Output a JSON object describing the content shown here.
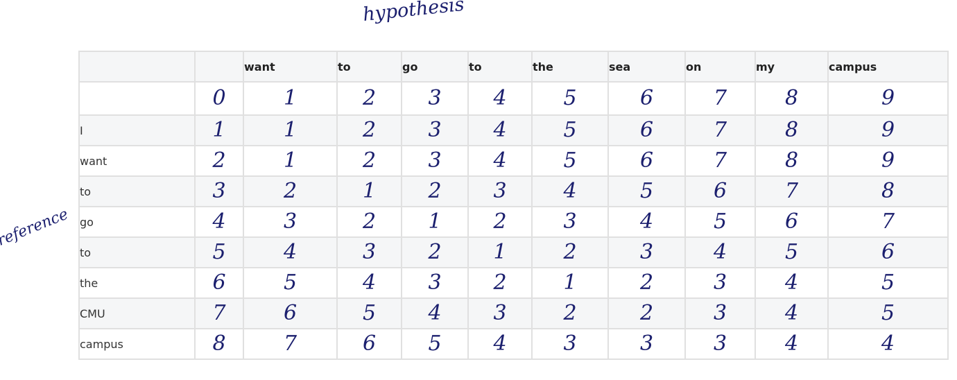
{
  "annotations": {
    "hypothesis": "hypothesis",
    "reference": "reference"
  },
  "header": [
    "",
    "",
    "want",
    "to",
    "go",
    "to",
    "the",
    "sea",
    "on",
    "my",
    "campus"
  ],
  "rows": [
    {
      "label": "",
      "values": [
        "0",
        "1",
        "2",
        "3",
        "4",
        "5",
        "6",
        "7",
        "8",
        "9"
      ]
    },
    {
      "label": "I",
      "values": [
        "1",
        "1",
        "2",
        "3",
        "4",
        "5",
        "6",
        "7",
        "8",
        "9"
      ]
    },
    {
      "label": "want",
      "values": [
        "2",
        "1",
        "2",
        "3",
        "4",
        "5",
        "6",
        "7",
        "8",
        "9"
      ]
    },
    {
      "label": "to",
      "values": [
        "3",
        "2",
        "1",
        "2",
        "3",
        "4",
        "5",
        "6",
        "7",
        "8"
      ]
    },
    {
      "label": "go",
      "values": [
        "4",
        "3",
        "2",
        "1",
        "2",
        "3",
        "4",
        "5",
        "6",
        "7"
      ]
    },
    {
      "label": "to",
      "values": [
        "5",
        "4",
        "3",
        "2",
        "1",
        "2",
        "3",
        "4",
        "5",
        "6"
      ]
    },
    {
      "label": "the",
      "values": [
        "6",
        "5",
        "4",
        "3",
        "2",
        "1",
        "2",
        "3",
        "4",
        "5"
      ]
    },
    {
      "label": "CMU",
      "values": [
        "7",
        "6",
        "5",
        "4",
        "3",
        "2",
        "2",
        "3",
        "4",
        "5"
      ]
    },
    {
      "label": "campus",
      "values": [
        "8",
        "7",
        "6",
        "5",
        "4",
        "3",
        "3",
        "3",
        "4",
        "4"
      ]
    }
  ],
  "colors": {
    "ink": "#1b1f6e",
    "grid": "#e0e0e0",
    "stripe": "#f5f6f7"
  }
}
